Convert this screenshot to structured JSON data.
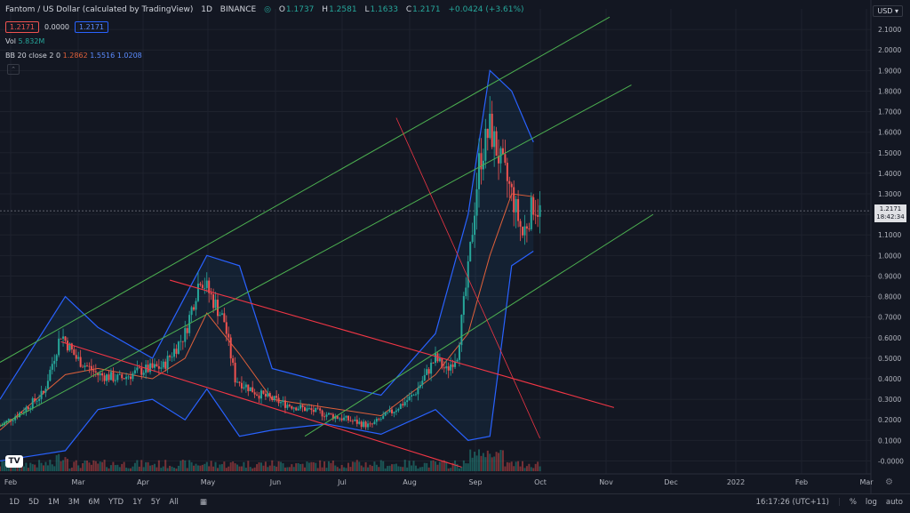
{
  "header": {
    "symbol": "Fantom / US Dollar (calculated by TradingView)",
    "interval": "1D",
    "exchange": "BINANCE",
    "ohlc": {
      "o_label": "O",
      "o": "1.1737",
      "h_label": "H",
      "h": "1.2581",
      "l_label": "L",
      "l": "1.1633",
      "c_label": "C",
      "c": "1.2171",
      "chg": "+0.0424 (+3.61%)"
    },
    "bid": "1.2171",
    "spread": "0.0000",
    "ask": "1.2171",
    "vol_label": "Vol",
    "vol_value": "5.832M",
    "bb_label": "BB 20 close 2 0",
    "bb_basis": "1.2862",
    "bb_upper": "1.5516",
    "bb_lower": "1.0208",
    "currency": "USD"
  },
  "price_tag": {
    "price": "1.2171",
    "countdown": "18:42:34"
  },
  "bottom": {
    "ranges": [
      "1D",
      "5D",
      "1M",
      "3M",
      "6M",
      "YTD",
      "1Y",
      "5Y",
      "All"
    ],
    "time": "16:17:26 (UTC+11)",
    "percent": "%",
    "log": "log",
    "auto": "auto"
  },
  "colors": {
    "bg": "#131722",
    "up": "#26a69a",
    "down": "#ef5350",
    "bb": "#2962ff",
    "basis": "#e0603a",
    "green_channel": "#4caf50",
    "red_channel": "#f23645"
  },
  "chart_data": {
    "type": "candlestick",
    "y_axis": {
      "ticks": [
        "2.1000",
        "2.0000",
        "1.9000",
        "1.8000",
        "1.7000",
        "1.6000",
        "1.5000",
        "1.4000",
        "1.3000",
        "1.2000",
        "1.1000",
        "1.0000",
        "0.9000",
        "0.8000",
        "0.7000",
        "0.6000",
        "0.5000",
        "0.4000",
        "0.3000",
        "0.2000",
        "0.1000",
        "-0.0000"
      ],
      "ylim": [
        -0.05,
        2.2
      ]
    },
    "x_axis": {
      "ticks": [
        "Feb",
        "Mar",
        "Apr",
        "May",
        "Jun",
        "Jul",
        "Aug",
        "Sep",
        "Oct",
        "Nov",
        "Dec",
        "2022",
        "Feb",
        "Mar"
      ]
    },
    "price_path": [
      [
        0,
        0.17
      ],
      [
        10,
        0.24
      ],
      [
        20,
        0.33
      ],
      [
        28,
        0.62
      ],
      [
        35,
        0.5
      ],
      [
        45,
        0.42
      ],
      [
        55,
        0.4
      ],
      [
        65,
        0.44
      ],
      [
        75,
        0.46
      ],
      [
        85,
        0.62
      ],
      [
        92,
        0.9
      ],
      [
        98,
        0.78
      ],
      [
        103,
        0.68
      ],
      [
        108,
        0.4
      ],
      [
        118,
        0.33
      ],
      [
        130,
        0.28
      ],
      [
        145,
        0.24
      ],
      [
        160,
        0.2
      ],
      [
        170,
        0.17
      ],
      [
        180,
        0.24
      ],
      [
        190,
        0.32
      ],
      [
        200,
        0.5
      ],
      [
        205,
        0.44
      ],
      [
        210,
        0.52
      ],
      [
        215,
        0.92
      ],
      [
        220,
        1.45
      ],
      [
        225,
        1.62
      ],
      [
        230,
        1.45
      ],
      [
        235,
        1.3
      ],
      [
        240,
        1.1
      ],
      [
        245,
        1.25
      ],
      [
        248,
        1.2171
      ]
    ],
    "bb_upper": [
      [
        0,
        0.3
      ],
      [
        30,
        0.8
      ],
      [
        45,
        0.65
      ],
      [
        70,
        0.5
      ],
      [
        85,
        0.8
      ],
      [
        95,
        1.0
      ],
      [
        110,
        0.95
      ],
      [
        125,
        0.45
      ],
      [
        150,
        0.38
      ],
      [
        175,
        0.32
      ],
      [
        200,
        0.62
      ],
      [
        215,
        1.2
      ],
      [
        225,
        1.9
      ],
      [
        235,
        1.8
      ],
      [
        245,
        1.5516
      ]
    ],
    "bb_lower": [
      [
        0,
        0.0
      ],
      [
        30,
        0.05
      ],
      [
        45,
        0.25
      ],
      [
        70,
        0.3
      ],
      [
        85,
        0.2
      ],
      [
        95,
        0.35
      ],
      [
        110,
        0.12
      ],
      [
        125,
        0.15
      ],
      [
        150,
        0.18
      ],
      [
        175,
        0.13
      ],
      [
        200,
        0.25
      ],
      [
        215,
        0.1
      ],
      [
        225,
        0.12
      ],
      [
        235,
        0.95
      ],
      [
        245,
        1.0208
      ]
    ],
    "bb_basis": [
      [
        0,
        0.15
      ],
      [
        30,
        0.42
      ],
      [
        45,
        0.45
      ],
      [
        70,
        0.4
      ],
      [
        85,
        0.5
      ],
      [
        95,
        0.72
      ],
      [
        110,
        0.52
      ],
      [
        125,
        0.3
      ],
      [
        150,
        0.26
      ],
      [
        175,
        0.22
      ],
      [
        200,
        0.42
      ],
      [
        215,
        0.62
      ],
      [
        225,
        1.0
      ],
      [
        235,
        1.3
      ],
      [
        245,
        1.2862
      ]
    ],
    "annotations": {
      "green_lines": [
        [
          [
            0,
            0.48
          ],
          [
            280,
            2.16
          ]
        ],
        [
          [
            0,
            0.17
          ],
          [
            290,
            1.83
          ]
        ],
        [
          [
            140,
            0.12
          ],
          [
            300,
            1.2
          ]
        ]
      ],
      "red_lines": [
        [
          [
            78,
            0.88
          ],
          [
            282,
            0.26
          ]
        ],
        [
          [
            28,
            0.58
          ],
          [
            212,
            -0.03
          ]
        ],
        [
          [
            182,
            1.67
          ],
          [
            248,
            0.11
          ]
        ]
      ]
    }
  }
}
